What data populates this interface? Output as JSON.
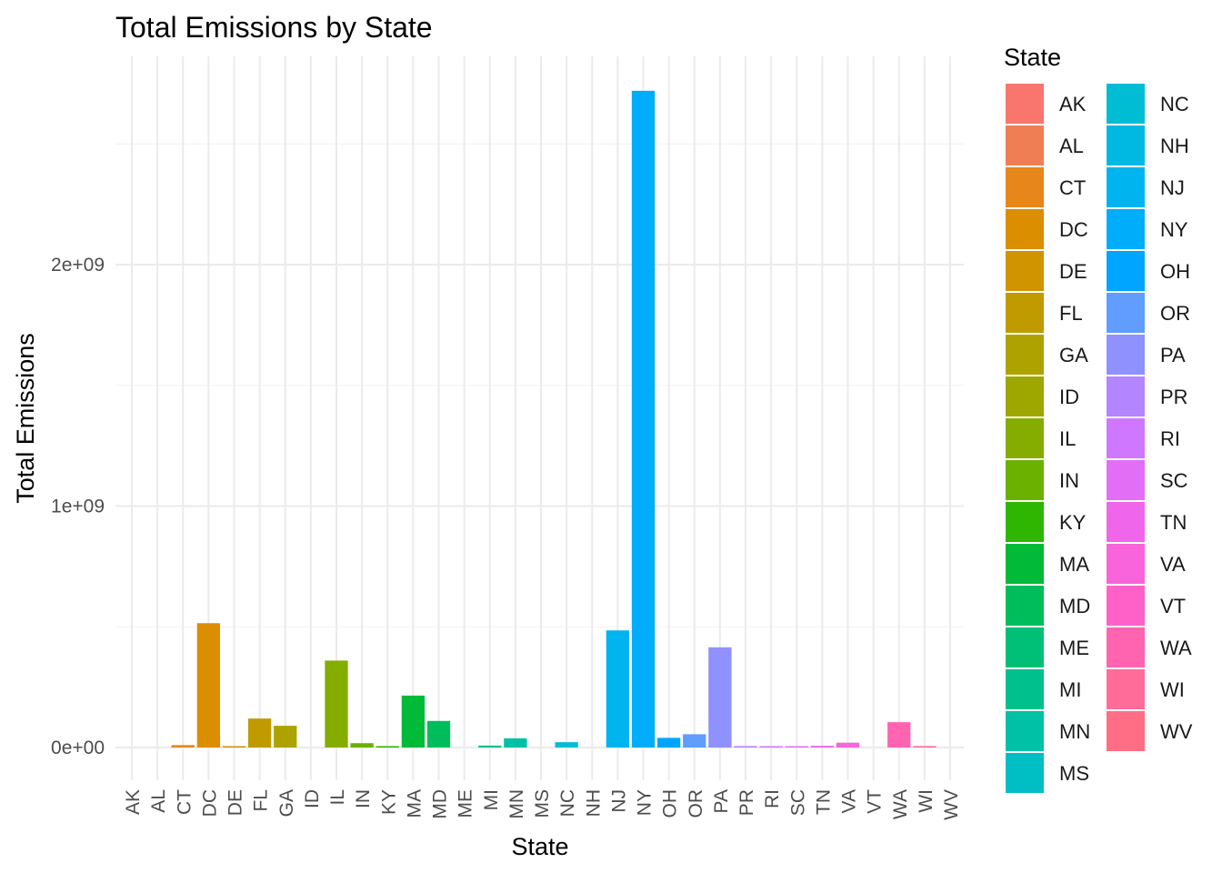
{
  "chart_data": {
    "type": "bar",
    "title": "Total Emissions by State",
    "xlabel": "State",
    "ylabel": "Total Emissions",
    "ylim": [
      -140000000,
      2900000000
    ],
    "y_ticks": [
      0,
      1000000000,
      2000000000
    ],
    "y_tick_labels": [
      "0e+00",
      "1e+09",
      "2e+09"
    ],
    "grid": true,
    "legend_title": "State",
    "legend_position": "right",
    "categories": [
      "AK",
      "AL",
      "CT",
      "DC",
      "DE",
      "FL",
      "GA",
      "ID",
      "IL",
      "IN",
      "KY",
      "MA",
      "MD",
      "ME",
      "MI",
      "MN",
      "MS",
      "NC",
      "NH",
      "NJ",
      "NY",
      "OH",
      "OR",
      "PA",
      "PR",
      "RI",
      "SC",
      "TN",
      "VA",
      "VT",
      "WA",
      "WI",
      "WV"
    ],
    "values": [
      0,
      0,
      10000000,
      515000000,
      3000000,
      120000000,
      90000000,
      0,
      360000000,
      18000000,
      4000000,
      215000000,
      110000000,
      0,
      8000000,
      38000000,
      0,
      22000000,
      0,
      485000000,
      2720000000,
      40000000,
      55000000,
      415000000,
      6000000,
      1000000,
      3000000,
      7000000,
      20000000,
      0,
      105000000,
      6000000,
      0
    ],
    "colors": [
      "#F8766D",
      "#F07E54",
      "#E7861B",
      "#DB8E00",
      "#CF9400",
      "#BF9B00",
      "#AEA200",
      "#9DA700",
      "#85AD00",
      "#6BB100",
      "#2FB600",
      "#00BA38",
      "#00BD5C",
      "#00C078",
      "#00C08E",
      "#00C1A5",
      "#00BFC4",
      "#00BDD4",
      "#00B9E3",
      "#00B4EF",
      "#00ADFA",
      "#00A5FF",
      "#619CFF",
      "#8F91FF",
      "#B385FF",
      "#CF78FF",
      "#E36EF6",
      "#F066EA",
      "#F964DB",
      "#FF61C9",
      "#FF64B1",
      "#FF6C9A",
      "#FF6E84"
    ]
  }
}
